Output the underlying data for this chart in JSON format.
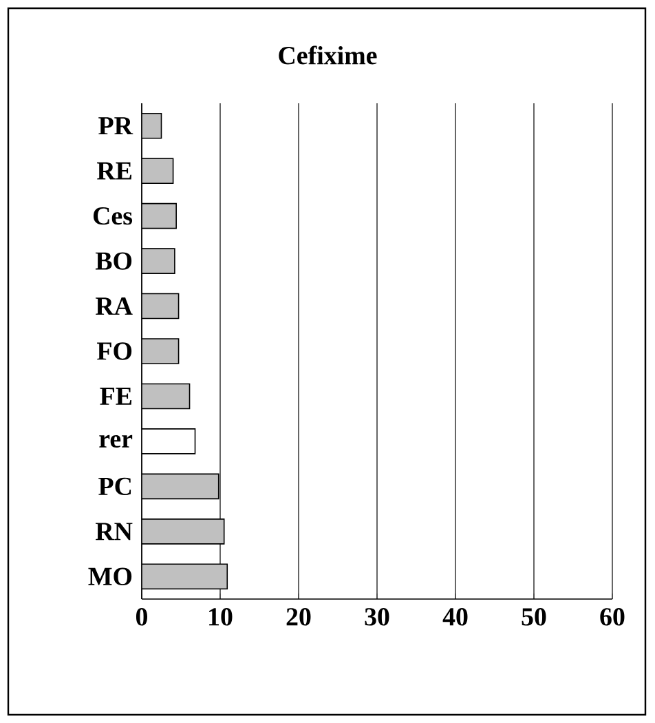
{
  "chart_data": {
    "type": "bar",
    "orientation": "horizontal",
    "title": "Cefixime",
    "categories": [
      "PR",
      "RE",
      "Ces",
      "BO",
      "RA",
      "FO",
      "FE",
      "rer",
      "PC",
      "RN",
      "MO"
    ],
    "values": [
      2.5,
      4.0,
      4.4,
      4.2,
      4.7,
      4.7,
      6.1,
      6.8,
      9.8,
      10.5,
      10.9
    ],
    "colors": [
      "#c0c0c0",
      "#c0c0c0",
      "#c0c0c0",
      "#c0c0c0",
      "#c0c0c0",
      "#c0c0c0",
      "#c0c0c0",
      "#ffffff",
      "#c0c0c0",
      "#c0c0c0",
      "#c0c0c0"
    ],
    "xlim": [
      0,
      60
    ],
    "xticks": [
      0,
      10,
      20,
      30,
      40,
      50,
      60
    ],
    "grid": "x"
  }
}
